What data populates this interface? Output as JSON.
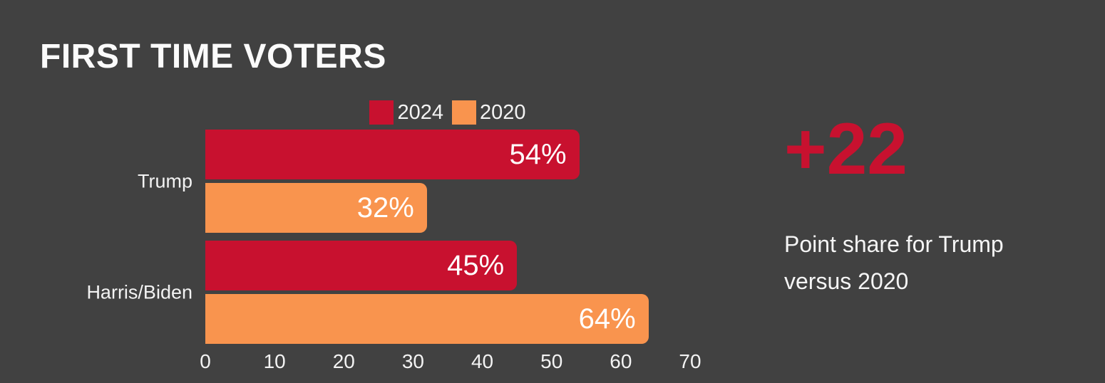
{
  "title": "FIRST TIME VOTERS",
  "colors": {
    "background": "#414141",
    "red": "#C8112F",
    "orange": "#F9944E",
    "text": "#F3F3F3"
  },
  "chart_data": {
    "type": "bar",
    "orientation": "horizontal",
    "categories": [
      "Trump",
      "Harris/Biden"
    ],
    "series": [
      {
        "name": "2024",
        "color": "#C8112F",
        "values": [
          54,
          45
        ],
        "labels": [
          "54%",
          "45%"
        ]
      },
      {
        "name": "2020",
        "color": "#F9944E",
        "values": [
          32,
          64
        ],
        "labels": [
          "32%",
          "64%"
        ]
      }
    ],
    "xlim": [
      0,
      70
    ],
    "x_ticks": [
      "0",
      "10",
      "20",
      "30",
      "40",
      "50",
      "60",
      "70"
    ],
    "grid": false,
    "legend_position": "top-center",
    "value_labels_inside": true
  },
  "callout": {
    "value": "+22",
    "color": "#C8112F",
    "description": "Point share for Trump versus 2020"
  }
}
